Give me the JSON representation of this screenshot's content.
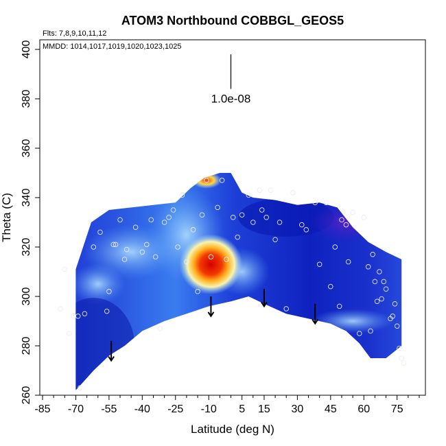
{
  "chart_data": {
    "type": "heatmap",
    "title": "ATOM3 Northbound COBBGL_GEOS5",
    "subtitle_flights": "Flts: 7,8,9,10,11,12",
    "subtitle_dates": "MMDD: 1014,1017,1019,1020,1023,1025",
    "xlabel": "Latitude (deg N)",
    "ylabel": "Theta (C)",
    "xlim": [
      -85,
      85
    ],
    "ylim": [
      260,
      400
    ],
    "x_ticks": [
      "-85",
      "-70",
      "-55",
      "-40",
      "-25",
      "-10",
      "5",
      "15",
      "30",
      "45",
      "60",
      "75"
    ],
    "x_tick_values": [
      -85,
      -70,
      -55,
      -40,
      -25,
      -10,
      5,
      15,
      30,
      45,
      60,
      75
    ],
    "x_minor_ticks": [
      -80,
      -75,
      -65,
      -60,
      -50,
      -45,
      -35,
      -30,
      -20,
      -15,
      -5,
      0,
      10,
      20,
      25,
      35,
      40,
      50,
      55,
      65,
      70,
      80,
      85
    ],
    "y_ticks": [
      "260",
      "280",
      "300",
      "320",
      "340",
      "360",
      "380",
      "400"
    ],
    "y_tick_values": [
      260,
      280,
      300,
      320,
      340,
      360,
      380,
      400
    ],
    "scale_bar": {
      "label": "1.0e-08",
      "x": 0,
      "y_top": 398,
      "y_bottom": 384
    },
    "hotspot": {
      "lat": -9,
      "theta": 313,
      "peak_theta": 347
    },
    "envelope_top": [
      [
        -70,
        311
      ],
      [
        -63,
        330
      ],
      [
        -55,
        335
      ],
      [
        -45,
        336
      ],
      [
        -35,
        337
      ],
      [
        -25,
        338
      ],
      [
        -18,
        344
      ],
      [
        -12,
        348
      ],
      [
        -5,
        350
      ],
      [
        0,
        350
      ],
      [
        5,
        342
      ],
      [
        10,
        340
      ],
      [
        20,
        339
      ],
      [
        30,
        337
      ],
      [
        40,
        338
      ],
      [
        48,
        336
      ],
      [
        55,
        328
      ],
      [
        62,
        322
      ],
      [
        70,
        318
      ],
      [
        77,
        315
      ]
    ],
    "envelope_bottom": [
      [
        -70,
        262
      ],
      [
        -62,
        270
      ],
      [
        -55,
        276
      ],
      [
        -48,
        280
      ],
      [
        -40,
        286
      ],
      [
        -30,
        290
      ],
      [
        -20,
        293
      ],
      [
        -10,
        296
      ],
      [
        0,
        298
      ],
      [
        8,
        300
      ],
      [
        15,
        297
      ],
      [
        25,
        293
      ],
      [
        35,
        291
      ],
      [
        45,
        289
      ],
      [
        52,
        286
      ],
      [
        58,
        281
      ],
      [
        63,
        275
      ],
      [
        70,
        275
      ],
      [
        77,
        280
      ]
    ],
    "arrows": [
      {
        "lat": -54,
        "theta_top": 282,
        "theta_bottom": 274
      },
      {
        "lat": -9,
        "theta_top": 300,
        "theta_bottom": 292
      },
      {
        "lat": 15,
        "theta_top": 303,
        "theta_bottom": 296
      },
      {
        "lat": 38,
        "theta_top": 297,
        "theta_bottom": 289
      }
    ],
    "observation_points": [
      [
        -77,
        295
      ],
      [
        -75,
        311
      ],
      [
        -73,
        285
      ],
      [
        -71,
        292
      ],
      [
        -69,
        292
      ],
      [
        -68,
        263
      ],
      [
        -66,
        293
      ],
      [
        -62,
        320
      ],
      [
        -59,
        326
      ],
      [
        -56,
        294
      ],
      [
        -55,
        302
      ],
      [
        -53,
        321
      ],
      [
        -52,
        321
      ],
      [
        -50,
        331
      ],
      [
        -48,
        315
      ],
      [
        -47,
        319
      ],
      [
        -43,
        328
      ],
      [
        -40,
        318
      ],
      [
        -38,
        321
      ],
      [
        -36,
        331
      ],
      [
        -34,
        316
      ],
      [
        -32,
        287
      ],
      [
        -30,
        330
      ],
      [
        -28,
        332
      ],
      [
        -26,
        335
      ],
      [
        -24,
        320
      ],
      [
        -22,
        341
      ],
      [
        -20,
        314
      ],
      [
        -17,
        327
      ],
      [
        -15,
        302
      ],
      [
        -13,
        333
      ],
      [
        -11,
        347
      ],
      [
        -9,
        316
      ],
      [
        -6,
        336
      ],
      [
        -4,
        347
      ],
      [
        -2,
        315
      ],
      [
        1,
        332
      ],
      [
        3,
        324
      ],
      [
        5,
        333
      ],
      [
        8,
        341
      ],
      [
        10,
        330
      ],
      [
        13,
        343
      ],
      [
        14,
        335
      ],
      [
        16,
        332
      ],
      [
        18,
        343
      ],
      [
        20,
        323
      ],
      [
        22,
        330
      ],
      [
        25,
        295
      ],
      [
        28,
        342
      ],
      [
        32,
        329
      ],
      [
        34,
        327
      ],
      [
        38,
        338
      ],
      [
        40,
        313
      ],
      [
        43,
        338
      ],
      [
        45,
        304
      ],
      [
        47,
        320
      ],
      [
        49,
        296
      ],
      [
        50,
        331
      ],
      [
        52,
        329
      ],
      [
        53,
        314
      ],
      [
        55,
        334
      ],
      [
        58,
        285
      ],
      [
        60,
        332
      ],
      [
        62,
        312
      ],
      [
        63,
        286
      ],
      [
        64,
        317
      ],
      [
        65,
        306
      ],
      [
        66,
        298
      ],
      [
        67,
        310
      ],
      [
        68,
        299
      ],
      [
        69,
        306
      ],
      [
        70,
        303
      ],
      [
        72,
        291
      ],
      [
        73,
        292
      ],
      [
        74,
        297
      ],
      [
        75,
        288
      ],
      [
        76,
        279
      ],
      [
        77,
        275
      ],
      [
        78,
        273
      ]
    ]
  }
}
